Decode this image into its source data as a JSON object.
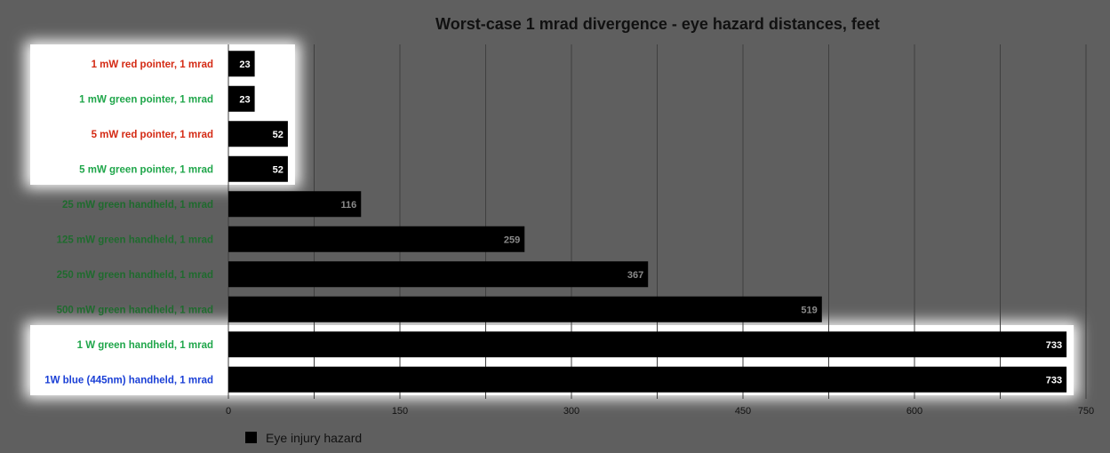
{
  "chart_data": {
    "type": "bar",
    "orientation": "horizontal",
    "title": "Worst-case 1 mrad divergence - eye hazard distances, feet",
    "xlabel": "",
    "ylabel": "",
    "categories": [
      "1 mW red pointer, 1 mrad",
      "1 mW green pointer, 1 mrad",
      "5 mW red pointer, 1 mrad",
      "5 mW green pointer, 1 mrad",
      "25 mW green handheld, 1 mrad",
      "125 mW green handheld, 1 mrad",
      "250 mW green handheld, 1 mrad",
      "500 mW green handheld, 1 mrad",
      "1 W green handheld, 1 mrad",
      "1W blue (445nm) handheld, 1 mrad"
    ],
    "category_colors": [
      "#d42a14",
      "#1fa64a",
      "#d42a14",
      "#1fa64a",
      "#1f6b2e",
      "#1f6b2e",
      "#1f6b2e",
      "#1f6b2e",
      "#1fa64a",
      "#1a3fd6"
    ],
    "highlighted": [
      true,
      true,
      true,
      true,
      false,
      false,
      false,
      false,
      true,
      true
    ],
    "series": [
      {
        "name": "Eye injury hazard",
        "color": "#000000",
        "values": [
          23,
          23,
          52,
          52,
          116,
          259,
          367,
          519,
          733,
          733
        ]
      }
    ],
    "xlim": [
      0,
      750
    ],
    "xticks": [
      "0",
      "150",
      "300",
      "450",
      "600",
      "750"
    ],
    "grid": "vertical",
    "legend": "bottom-left"
  }
}
